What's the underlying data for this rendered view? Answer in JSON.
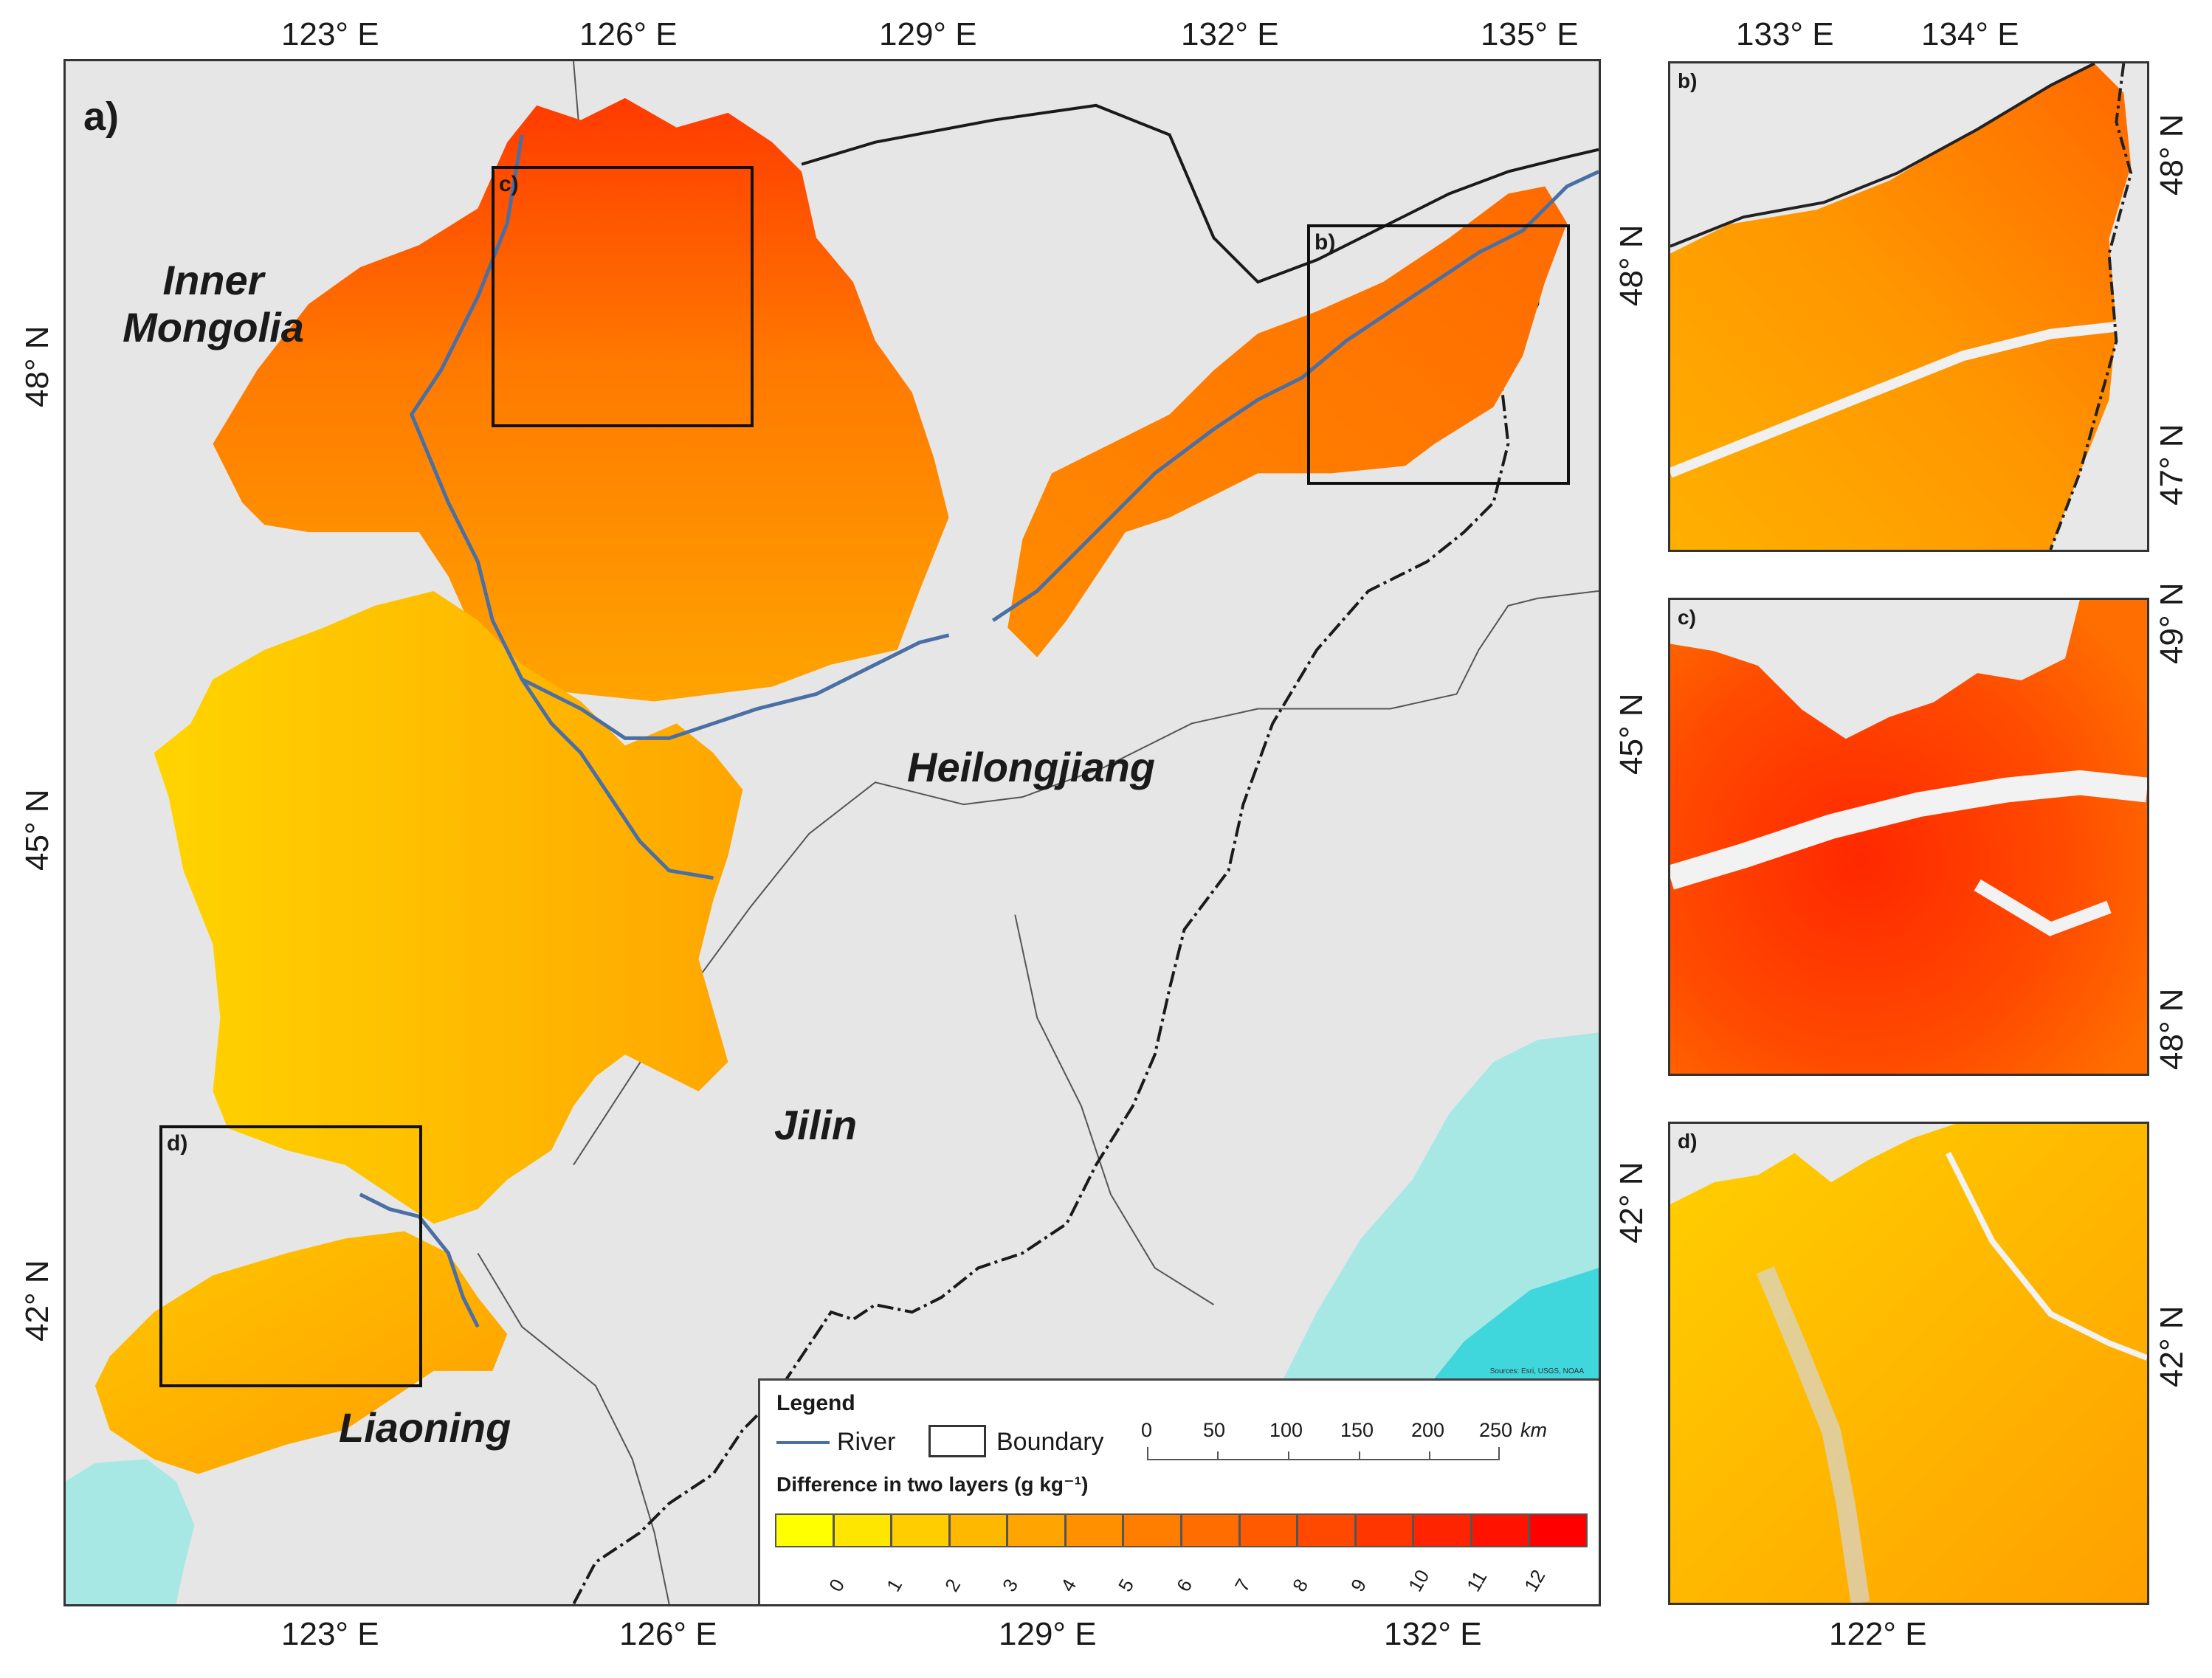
{
  "main_map": {
    "panel_label": "a)",
    "top_ticks": [
      "123° E",
      "126° E",
      "129° E",
      "132° E",
      "135° E"
    ],
    "bottom_ticks": [
      "123° E",
      "126° E",
      "129° E",
      "132° E"
    ],
    "left_ticks": [
      "48° N",
      "45° N",
      "42° N"
    ],
    "right_ticks": [
      "48° N",
      "45° N",
      "42° N"
    ],
    "places": {
      "inner_mongolia": "Inner\nMongolia",
      "heilongjiang": "Heilongjiang",
      "jilin": "Jilin",
      "liaoning": "Liaoning"
    },
    "inset_labels": {
      "b": "b)",
      "c": "c)",
      "d": "d)"
    },
    "attribution": "Sources: Esri, USGS, NOAA"
  },
  "legend": {
    "title": "Legend",
    "river_label": "River",
    "boundary_label": "Boundary",
    "scale_labels": [
      "0",
      "50",
      "100",
      "150",
      "200",
      "250"
    ],
    "scale_unit": "km",
    "colorbar_title": "Difference in two layers (g kg⁻¹)",
    "colorbar_labels": [
      "0",
      "1",
      "2",
      "3",
      "4",
      "5",
      "6",
      "7",
      "8",
      "9",
      "10",
      "11",
      "12"
    ],
    "colorbar_colors": [
      "#ffff00",
      "#ffe600",
      "#ffcd00",
      "#ffb800",
      "#ffa400",
      "#ff9000",
      "#ff7e00",
      "#ff6c00",
      "#ff5a00",
      "#ff4800",
      "#ff3600",
      "#ff2400",
      "#ff1200",
      "#ff0000"
    ],
    "river_color": "#4a6fa5"
  },
  "panel_b": {
    "label": "b)",
    "top_ticks": [
      "133° E",
      "134° E"
    ],
    "right_ticks": [
      "48° N",
      "47° N"
    ]
  },
  "panel_c": {
    "label": "c)",
    "right_ticks": [
      "49° N",
      "48° N"
    ]
  },
  "panel_d": {
    "label": "d)",
    "right_ticks": [
      "42° N"
    ],
    "bottom_ticks": [
      "122° E"
    ]
  },
  "colors": {
    "land": "#e4e4e4",
    "sea": "#3fd6dc",
    "sea_shallow": "#a8e8e4",
    "boundary": "#222222",
    "frame": "#333333"
  }
}
